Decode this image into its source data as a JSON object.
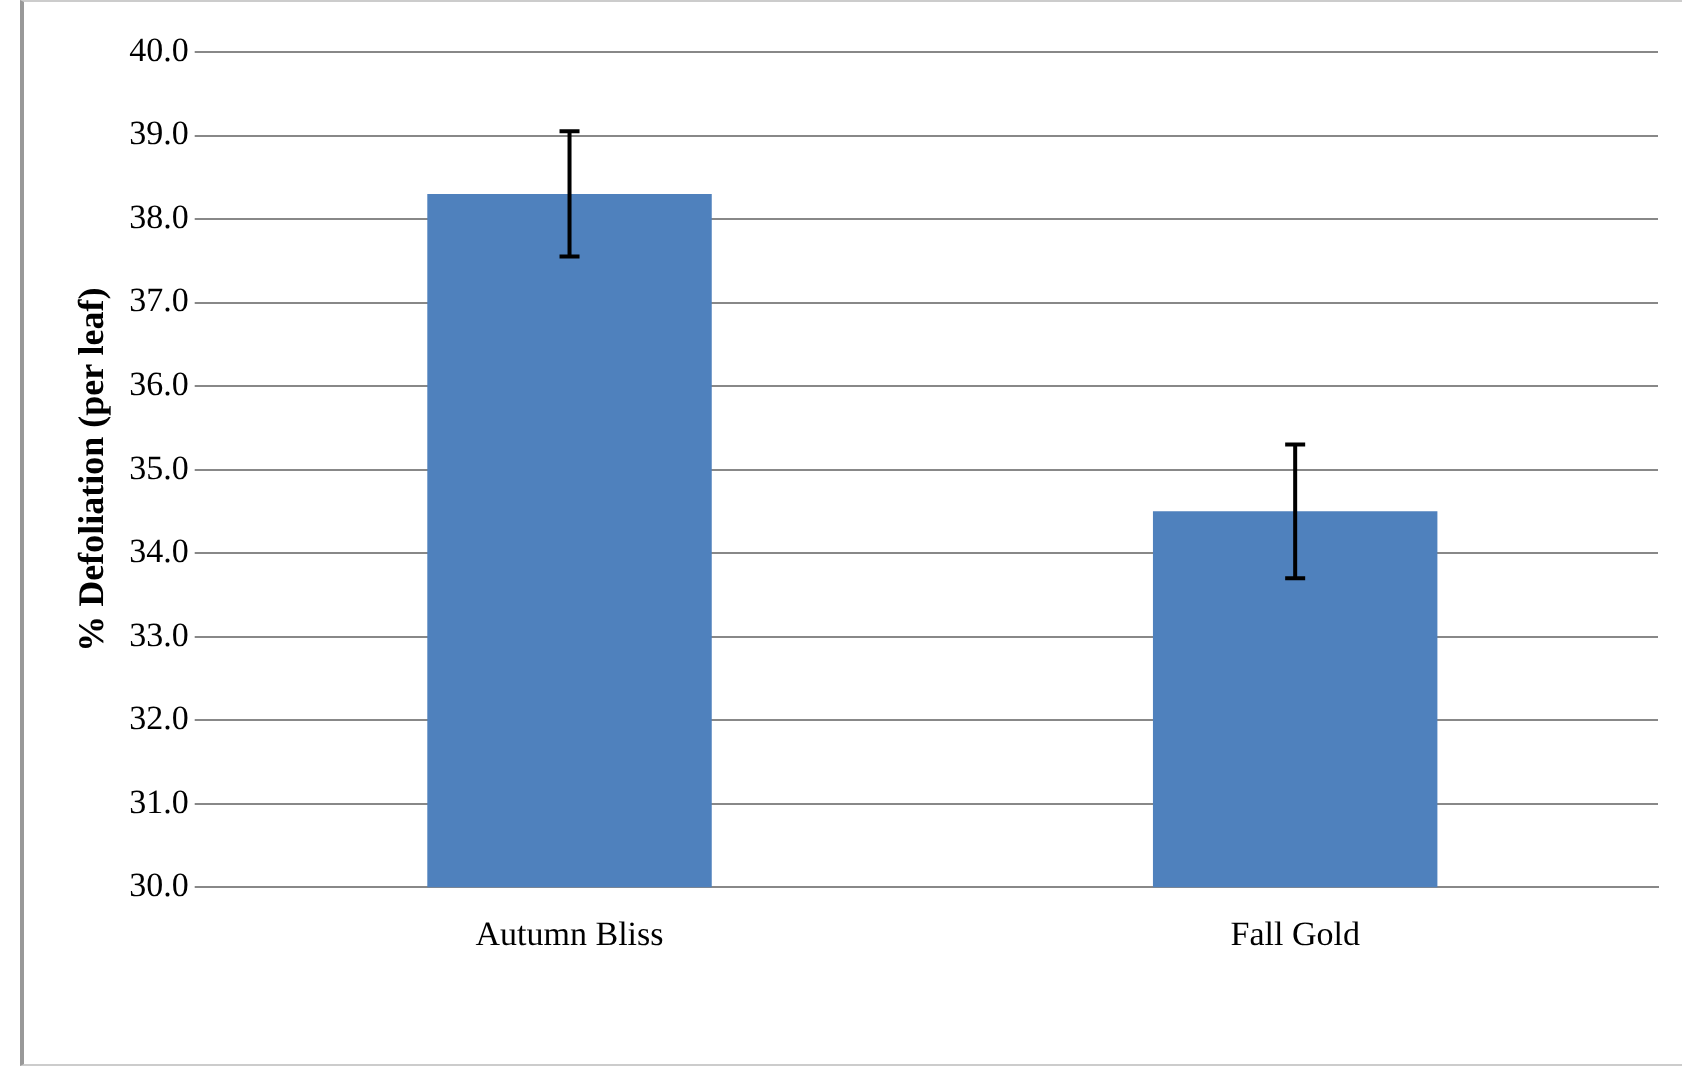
{
  "chart_data": {
    "type": "bar",
    "ylabel": "% Defoliation (per leaf)",
    "categories": [
      "Autumn Bliss",
      "Fall Gold"
    ],
    "values": [
      38.3,
      34.5
    ],
    "color": "#4f81bd",
    "errors": [
      0.75,
      0.8
    ],
    "ylim": [
      30,
      40
    ],
    "yticks": [
      {
        "value": 30,
        "label": "30.0"
      },
      {
        "value": 31,
        "label": "31.0"
      },
      {
        "value": 32,
        "label": "32.0"
      },
      {
        "value": 33,
        "label": "33.0"
      },
      {
        "value": 34,
        "label": "34.0"
      },
      {
        "value": 35,
        "label": "35.0"
      },
      {
        "value": 36,
        "label": "36.0"
      },
      {
        "value": 37,
        "label": "37.0"
      },
      {
        "value": 38,
        "label": "38.0"
      },
      {
        "value": 39,
        "label": "39.0"
      },
      {
        "value": 40,
        "label": "40.0"
      }
    ],
    "grid": "y"
  }
}
